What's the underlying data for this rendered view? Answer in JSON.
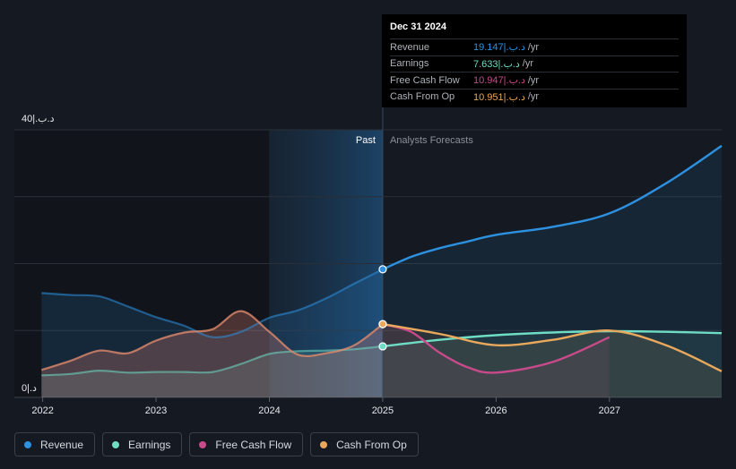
{
  "chart_data": {
    "type": "line",
    "y_axis": {
      "top_label": "40|.ﺩ.ﺏ",
      "bottom_label": "0|.ﺩ",
      "ylim": [
        0,
        40
      ]
    },
    "x_ticks": [
      "2022",
      "2023",
      "2024",
      "2025",
      "2026",
      "2027"
    ],
    "x_range": [
      2021.75,
      2027.99
    ],
    "past_label": "Past",
    "forecast_label": "Analysts Forecasts",
    "past_start": 2024.0,
    "split_x": 2025.0,
    "series": [
      {
        "name": "Revenue",
        "color": "#2d91e0",
        "past": [
          [
            2021.99,
            15.6
          ],
          [
            2022.25,
            15.3
          ],
          [
            2022.5,
            15.1
          ],
          [
            2022.75,
            13.6
          ],
          [
            2023.0,
            12.0
          ],
          [
            2023.25,
            10.7
          ],
          [
            2023.5,
            9.0
          ],
          [
            2023.75,
            9.8
          ],
          [
            2024.0,
            11.9
          ],
          [
            2024.25,
            13.0
          ],
          [
            2024.5,
            14.8
          ],
          [
            2024.75,
            17.0
          ],
          [
            2025.0,
            19.147
          ]
        ],
        "forecast": [
          [
            2025.0,
            19.147
          ],
          [
            2025.25,
            21.0
          ],
          [
            2025.5,
            22.3
          ],
          [
            2025.75,
            23.3
          ],
          [
            2026.0,
            24.3
          ],
          [
            2026.5,
            25.5
          ],
          [
            2027.0,
            27.5
          ],
          [
            2027.5,
            32.0
          ],
          [
            2027.99,
            37.6
          ]
        ]
      },
      {
        "name": "Earnings",
        "color": "#6fdcc4",
        "past": [
          [
            2021.99,
            3.3
          ],
          [
            2022.25,
            3.5
          ],
          [
            2022.5,
            4.0
          ],
          [
            2022.75,
            3.7
          ],
          [
            2023.0,
            3.8
          ],
          [
            2023.25,
            3.8
          ],
          [
            2023.5,
            3.8
          ],
          [
            2023.75,
            5.0
          ],
          [
            2024.0,
            6.5
          ],
          [
            2024.25,
            6.9
          ],
          [
            2024.5,
            7.0
          ],
          [
            2024.75,
            7.2
          ],
          [
            2025.0,
            7.633
          ]
        ],
        "forecast": [
          [
            2025.0,
            7.633
          ],
          [
            2025.5,
            8.6
          ],
          [
            2026.0,
            9.3
          ],
          [
            2026.5,
            9.7
          ],
          [
            2027.0,
            9.9
          ],
          [
            2027.5,
            9.8
          ],
          [
            2027.99,
            9.6
          ]
        ]
      },
      {
        "name": "Free Cash Flow",
        "color": "#c84a8a",
        "past": [
          [
            2021.99,
            4.1
          ],
          [
            2022.25,
            5.5
          ],
          [
            2022.5,
            7.0
          ],
          [
            2022.75,
            6.6
          ],
          [
            2023.0,
            8.5
          ],
          [
            2023.25,
            9.7
          ],
          [
            2023.5,
            10.2
          ],
          [
            2023.75,
            12.9
          ],
          [
            2024.0,
            9.8
          ],
          [
            2024.25,
            6.4
          ],
          [
            2024.5,
            6.6
          ],
          [
            2024.75,
            7.8
          ],
          [
            2025.0,
            10.947
          ]
        ],
        "forecast": [
          [
            2025.0,
            10.947
          ],
          [
            2025.25,
            9.8
          ],
          [
            2025.5,
            6.7
          ],
          [
            2025.75,
            4.5
          ],
          [
            2026.0,
            3.7
          ],
          [
            2026.5,
            5.3
          ],
          [
            2027.0,
            9.0
          ]
        ]
      },
      {
        "name": "Cash From Op",
        "color": "#e9a85c",
        "past": [
          [
            2021.99,
            4.1
          ],
          [
            2022.25,
            5.5
          ],
          [
            2022.5,
            7.0
          ],
          [
            2022.75,
            6.6
          ],
          [
            2023.0,
            8.5
          ],
          [
            2023.25,
            9.7
          ],
          [
            2023.5,
            10.2
          ],
          [
            2023.75,
            12.9
          ],
          [
            2024.0,
            9.8
          ],
          [
            2024.25,
            6.4
          ],
          [
            2024.5,
            6.6
          ],
          [
            2024.75,
            7.8
          ],
          [
            2025.0,
            10.951
          ]
        ],
        "forecast": [
          [
            2025.0,
            10.951
          ],
          [
            2025.5,
            9.5
          ],
          [
            2026.0,
            7.8
          ],
          [
            2026.5,
            8.6
          ],
          [
            2027.0,
            10.0
          ],
          [
            2027.5,
            7.8
          ],
          [
            2027.99,
            3.9
          ]
        ]
      }
    ]
  },
  "tooltip": {
    "date": "Dec 31 2024",
    "rows": [
      {
        "label": "Revenue",
        "value": "19.147|.ﺩ.ﺏ",
        "unit": "/yr",
        "color": "#2d91e0"
      },
      {
        "label": "Earnings",
        "value": "7.633|.ﺩ.ﺏ",
        "unit": "/yr",
        "color": "#6fdcc4"
      },
      {
        "label": "Free Cash Flow",
        "value": "10.947|.ﺩ.ﺏ",
        "unit": "/yr",
        "color": "#c84a8a"
      },
      {
        "label": "Cash From Op",
        "value": "10.951|.ﺩ.ﺏ",
        "unit": "/yr",
        "color": "#e9a85c"
      }
    ]
  },
  "legend": [
    {
      "label": "Revenue",
      "color": "#2d91e0"
    },
    {
      "label": "Earnings",
      "color": "#6fdcc4"
    },
    {
      "label": "Free Cash Flow",
      "color": "#c84a8a"
    },
    {
      "label": "Cash From Op",
      "color": "#e9a85c"
    }
  ]
}
